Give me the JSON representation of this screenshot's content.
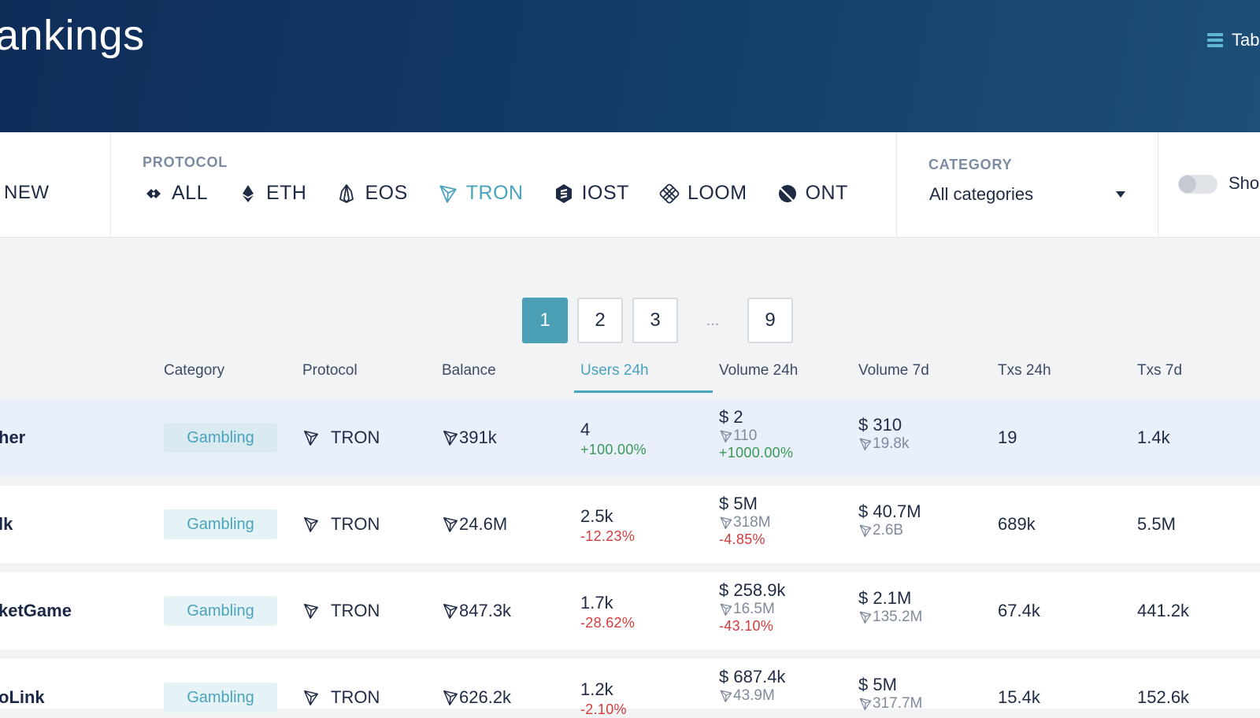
{
  "header": {
    "title": "ankings",
    "view_label": "Tab"
  },
  "filters": {
    "new_label": "NEW",
    "protocol_label": "PROTOCOL",
    "protocols": [
      {
        "label": "ALL",
        "icon": "all-protocols-icon"
      },
      {
        "label": "ETH",
        "icon": "eth-icon"
      },
      {
        "label": "EOS",
        "icon": "eos-icon"
      },
      {
        "label": "TRON",
        "icon": "tron-icon",
        "active": true
      },
      {
        "label": "IOST",
        "icon": "iost-icon"
      },
      {
        "label": "LOOM",
        "icon": "loom-icon"
      },
      {
        "label": "ONT",
        "icon": "ont-icon"
      }
    ],
    "category_label": "CATEGORY",
    "category_value": "All categories",
    "show_label": "Sho"
  },
  "pagination": {
    "pages": [
      "1",
      "2",
      "3"
    ],
    "dots": "...",
    "last": "9",
    "active": "1"
  },
  "columns": [
    "Category",
    "Protocol",
    "Balance",
    "Users 24h",
    "Volume 24h",
    "Volume 7d",
    "Txs 24h",
    "Txs 7d"
  ],
  "rows": [
    {
      "name": "her",
      "category": "Gambling",
      "protocol": "TRON",
      "balance": "391k",
      "users": "4",
      "users_change": "+100.00%",
      "vol24_usd": "2",
      "vol24_trx": "110",
      "vol24_change": "+1000.00%",
      "vol7_usd": "310",
      "vol7_trx": "19.8k",
      "txs24": "19",
      "txs7": "1.4k"
    },
    {
      "name": "lk",
      "category": "Gambling",
      "protocol": "TRON",
      "balance": "24.6M",
      "users": "2.5k",
      "users_change": "-12.23%",
      "vol24_usd": "5M",
      "vol24_trx": "318M",
      "vol24_change": "-4.85%",
      "vol7_usd": "40.7M",
      "vol7_trx": "2.6B",
      "txs24": "689k",
      "txs7": "5.5M"
    },
    {
      "name": "ketGame",
      "category": "Gambling",
      "protocol": "TRON",
      "balance": "847.3k",
      "users": "1.7k",
      "users_change": "-28.62%",
      "vol24_usd": "258.9k",
      "vol24_trx": "16.5M",
      "vol24_change": "-43.10%",
      "vol7_usd": "2.1M",
      "vol7_trx": "135.2M",
      "txs24": "67.4k",
      "txs7": "441.2k"
    },
    {
      "name": "oLink",
      "category": "Gambling",
      "protocol": "TRON",
      "balance": "626.2k",
      "users": "1.2k",
      "users_change": "-2.10%",
      "vol24_usd": "687.4k",
      "vol24_trx": "43.9M",
      "vol24_change": "",
      "vol7_usd": "5M",
      "vol7_trx": "317.7M",
      "txs24": "15.4k",
      "txs7": "152.6k"
    }
  ],
  "currency_symbol": "$",
  "colors": {
    "accent": "#4aa3bd",
    "positive": "#3a9a55",
    "negative": "#d23c3c",
    "header": "#133e69"
  }
}
